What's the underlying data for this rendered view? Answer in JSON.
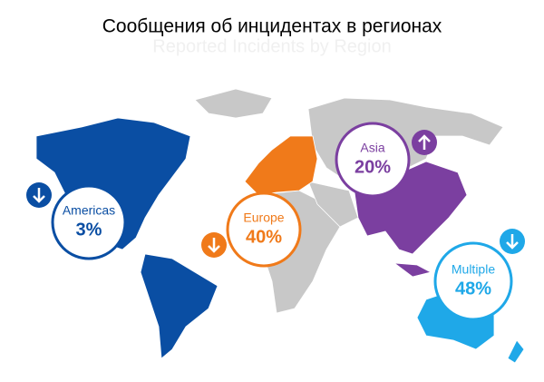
{
  "header": {
    "title": "Сообщения об инцидентах в регионах",
    "subtitle": "Reported Incidents by Region"
  },
  "regions": [
    {
      "name": "Americas",
      "value": "3%"
    },
    {
      "name": "Europe",
      "value": "40%"
    },
    {
      "name": "Asia",
      "value": "20%"
    },
    {
      "name": "Multiple",
      "value": "48%"
    }
  ]
}
